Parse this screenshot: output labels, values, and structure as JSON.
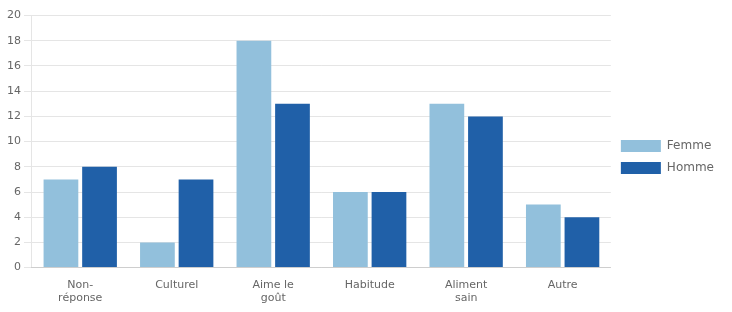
{
  "chart_data": {
    "type": "bar",
    "categories": [
      "Non-\nréponse",
      "Culturel",
      "Aime le\ngoût",
      "Habitude",
      "Aliment\nsain",
      "Autre"
    ],
    "series": [
      {
        "name": "Femme",
        "color": "#92C0DC",
        "values": [
          7,
          2,
          18,
          6,
          13,
          5
        ]
      },
      {
        "name": "Homme",
        "color": "#2060A8",
        "values": [
          8,
          7,
          13,
          6,
          12,
          4
        ]
      }
    ],
    "ylim": [
      0,
      20
    ],
    "yticks": [
      0,
      2,
      4,
      6,
      8,
      10,
      12,
      14,
      16,
      18,
      20
    ],
    "grid": true,
    "legend": "right"
  }
}
